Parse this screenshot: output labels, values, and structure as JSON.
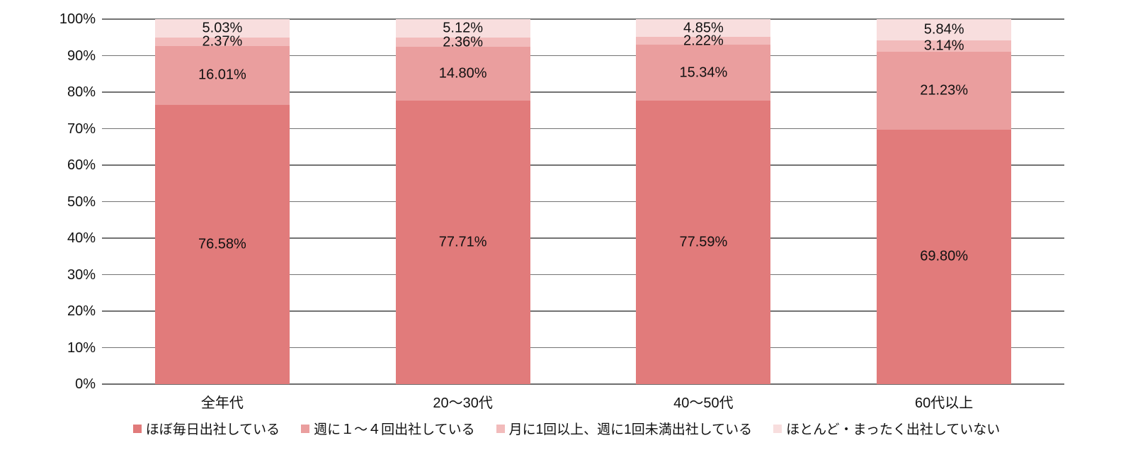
{
  "chart_data": {
    "type": "bar",
    "subtype": "stacked-100-percent-column",
    "title": "",
    "xlabel": "",
    "ylabel": "",
    "categories": [
      "全年代",
      "20～30代",
      "40～50代",
      "60代以上"
    ],
    "series": [
      {
        "name": "ほぼ毎日出社している",
        "color": "#e17b7b",
        "values": [
          76.58,
          77.71,
          77.59,
          69.8
        ]
      },
      {
        "name": "週に１～４回出社している",
        "color": "#ea9e9e",
        "values": [
          16.01,
          14.8,
          15.34,
          21.23
        ]
      },
      {
        "name": "月に1回以上、週に1回未満出社している",
        "color": "#f2bbbb",
        "values": [
          2.37,
          2.36,
          2.22,
          3.14
        ]
      },
      {
        "name": "ほとんど・まったく出社していない",
        "color": "#f8dede",
        "values": [
          5.03,
          5.12,
          4.85,
          5.84
        ]
      }
    ],
    "data_label_format": "0.00%",
    "y_ticks": [
      "100%",
      "90%",
      "80%",
      "70%",
      "60%",
      "50%",
      "40%",
      "30%",
      "20%",
      "10%",
      "0%"
    ],
    "ylim": [
      0,
      100
    ],
    "grid": true,
    "legend_position": "bottom"
  },
  "style": {
    "gridline_color": "#737373",
    "axis_color": "#6e6e6e",
    "text_color": "#111111",
    "background": "#ffffff"
  }
}
